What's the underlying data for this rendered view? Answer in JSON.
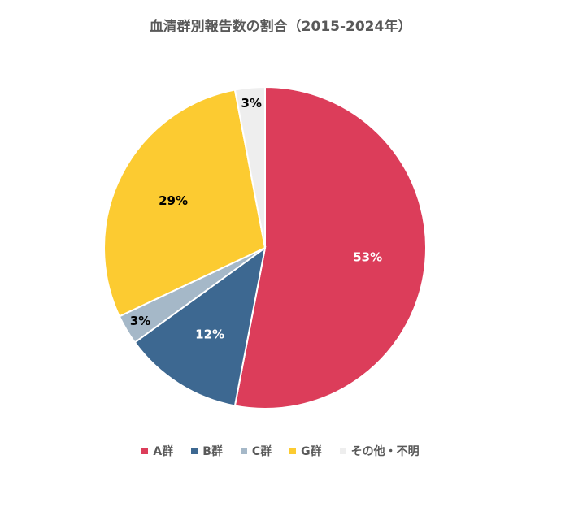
{
  "chart_data": {
    "type": "pie",
    "title": "血清群別報告数の割合（2015-2024年）",
    "categories": [
      "A群",
      "B群",
      "C群",
      "G群",
      "その他・不明"
    ],
    "values": [
      53,
      12,
      3,
      29,
      3
    ],
    "labels": [
      "53%",
      "12%",
      "3%",
      "29%",
      "3%"
    ],
    "colors": [
      "#DC3D5A",
      "#3D6891",
      "#A5B8C8",
      "#FCCB31",
      "#EEEEEE"
    ],
    "label_colors": [
      "#ffffff",
      "#ffffff",
      "#000000",
      "#000000",
      "#000000"
    ],
    "legend_position": "bottom",
    "start": "12 o'clock",
    "direction": "clockwise"
  }
}
